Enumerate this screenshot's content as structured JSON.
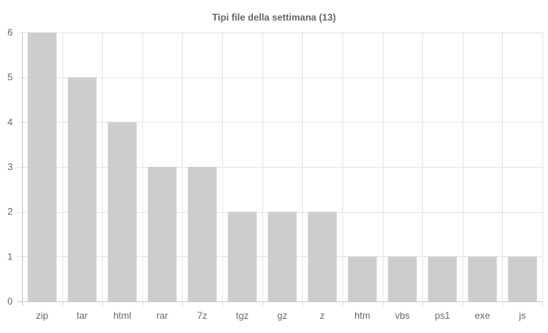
{
  "chart_data": {
    "type": "bar",
    "title": "Tipi file della settimana (13)",
    "categories": [
      "zip",
      "tar",
      "html",
      "rar",
      "7z",
      "tgz",
      "gz",
      "z",
      "htm",
      "vbs",
      "ps1",
      "exe",
      "js"
    ],
    "values": [
      6,
      5,
      4,
      3,
      3,
      2,
      2,
      2,
      1,
      1,
      1,
      1,
      1
    ],
    "ylim": [
      0,
      6
    ],
    "yticks": [
      0,
      1,
      2,
      3,
      4,
      5,
      6
    ],
    "xlabel": "",
    "ylabel": "",
    "grid": true,
    "legend": "none",
    "colors": {
      "bar": "#cdcdcf",
      "grid": "#e6e6e6",
      "axis": "#c8c8c8",
      "text": "#666666"
    }
  }
}
